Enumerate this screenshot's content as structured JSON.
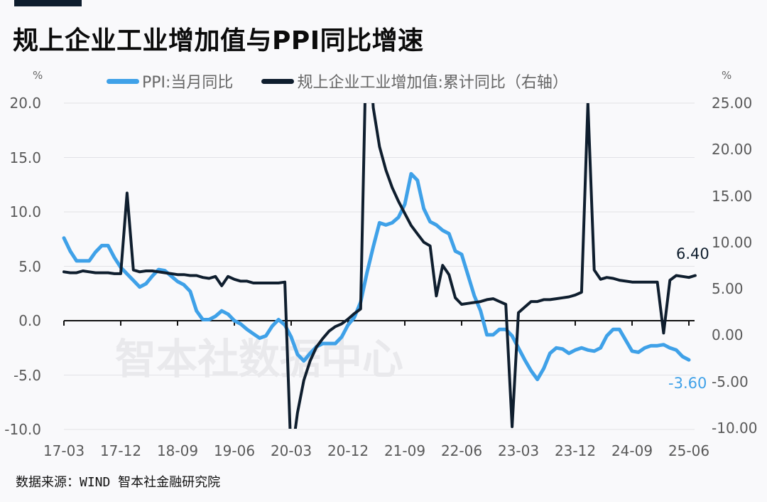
{
  "header": {
    "title": "规上企业工业增加值与PPI同比增速"
  },
  "axes": {
    "left_unit": "%",
    "right_unit": "%"
  },
  "legend": [
    {
      "label": "PPI:当月同比",
      "color": "#3fa1e8"
    },
    {
      "label": "规上企业工业增加值:累计同比（右轴）",
      "color": "#0f1e2e"
    }
  ],
  "end_labels": {
    "iva": "6.40",
    "ppi": "-3.60"
  },
  "watermark": "智本社数据中心",
  "source": "数据来源：WIND 智本社金融研究院",
  "chart_data": {
    "type": "line",
    "title": "规上企业工业增加值与PPI同比增速",
    "xlabel": "",
    "ylabel": "%",
    "y2label": "%",
    "x_tick_labels": [
      "17-03",
      "17-12",
      "18-09",
      "19-06",
      "20-03",
      "20-12",
      "21-09",
      "22-06",
      "23-03",
      "23-12",
      "24-09",
      "25-06"
    ],
    "y_left_ticks": [
      "20.0",
      "15.0",
      "10.0",
      "5.0",
      "0.0",
      "-5.0",
      "-10.0"
    ],
    "y_right_ticks": [
      "25.00",
      "20.00",
      "15.00",
      "10.00",
      "5.00",
      "0.00",
      "-5.00",
      "-10.00"
    ],
    "ylim_left": [
      -10,
      20
    ],
    "ylim_right": [
      -10,
      25
    ],
    "grid": true,
    "legend_position": "top",
    "x_start": "2017-03",
    "x_end": "2025-06",
    "frequency": "monthly",
    "series": [
      {
        "name": "PPI:当月同比",
        "axis": "left",
        "color": "#3fa1e8",
        "values": [
          7.6,
          6.4,
          5.5,
          5.5,
          5.5,
          6.3,
          6.9,
          6.9,
          5.8,
          4.9,
          4.3,
          3.7,
          3.1,
          3.4,
          4.1,
          4.7,
          4.6,
          4.1,
          3.6,
          3.3,
          2.7,
          0.9,
          0.1,
          0.1,
          0.4,
          0.9,
          0.6,
          0.0,
          -0.3,
          -0.8,
          -1.2,
          -1.6,
          -1.4,
          -0.5,
          0.1,
          -0.4,
          -1.5,
          -3.1,
          -3.7,
          -3.0,
          -2.4,
          -2.1,
          -2.1,
          -2.1,
          -1.5,
          -0.4,
          0.3,
          1.7,
          4.4,
          6.8,
          9.0,
          8.8,
          9.0,
          9.5,
          10.7,
          13.5,
          12.9,
          10.3,
          9.1,
          8.8,
          8.3,
          8.0,
          6.4,
          6.1,
          4.2,
          2.3,
          0.9,
          -1.3,
          -1.3,
          -0.8,
          -0.8,
          -1.4,
          -2.5,
          -3.6,
          -4.6,
          -5.4,
          -4.4,
          -3.0,
          -2.5,
          -2.6,
          -3.0,
          -2.7,
          -2.5,
          -2.7,
          -2.8,
          -2.5,
          -1.4,
          -0.8,
          -0.8,
          -1.8,
          -2.8,
          -2.9,
          -2.5,
          -2.3,
          -2.3,
          -2.2,
          -2.5,
          -2.7,
          -3.3,
          -3.6
        ]
      },
      {
        "name": "规上企业工业增加值:累计同比（右轴）",
        "axis": "right",
        "color": "#0f1e2e",
        "values": [
          6.8,
          6.7,
          6.7,
          6.9,
          6.8,
          6.7,
          6.7,
          6.7,
          6.6,
          6.6,
          15.3,
          7.0,
          6.8,
          6.9,
          6.9,
          6.8,
          6.7,
          6.6,
          6.5,
          6.5,
          6.4,
          6.4,
          6.2,
          6.1,
          6.3,
          5.3,
          6.3,
          6.0,
          5.8,
          5.8,
          5.6,
          5.6,
          5.6,
          5.6,
          5.6,
          5.7,
          -13.5,
          -8.4,
          -4.9,
          -2.8,
          -1.3,
          -0.4,
          0.4,
          0.9,
          1.2,
          1.7,
          2.3,
          2.8,
          35.1,
          24.5,
          20.3,
          17.8,
          15.9,
          14.4,
          13.1,
          11.8,
          10.9,
          10.0,
          9.6,
          4.2,
          7.5,
          6.5,
          4.0,
          3.3,
          3.4,
          3.5,
          3.6,
          3.8,
          3.9,
          3.6,
          3.3,
          -9.9,
          2.4,
          3.0,
          3.6,
          3.6,
          3.8,
          3.8,
          3.9,
          4.0,
          4.1,
          4.3,
          4.6,
          25.0,
          7.0,
          6.0,
          6.2,
          6.1,
          5.9,
          5.8,
          5.7,
          5.7,
          5.7,
          5.7,
          5.7,
          0.2,
          5.9,
          6.4,
          6.3,
          6.2,
          6.4
        ]
      }
    ]
  }
}
